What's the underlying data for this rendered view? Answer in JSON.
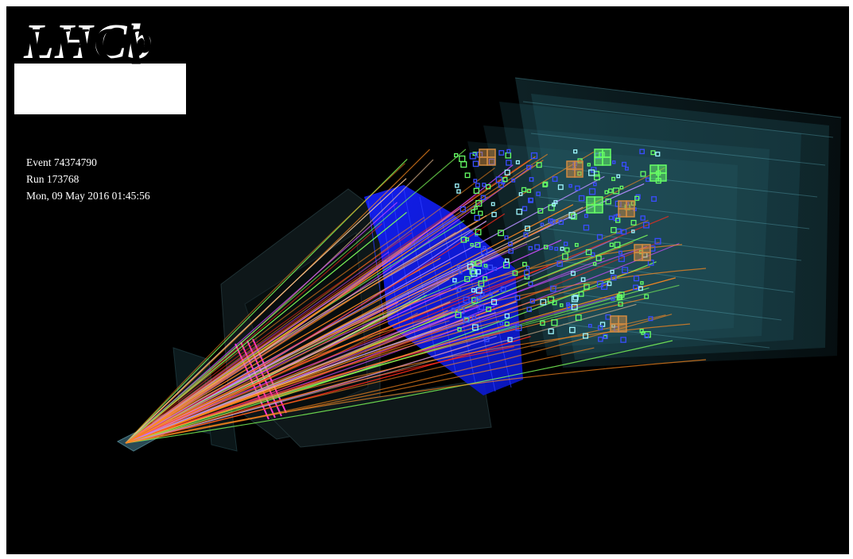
{
  "logo": {
    "text": "LHCb"
  },
  "event": {
    "event_label": "Event 74374790",
    "run_label": "Run 173768",
    "timestamp": "Mon, 09 May 2016 01:45:56"
  },
  "colors": {
    "background": "#000000",
    "rich_detector": "#1a2bff",
    "calorimeter": "#3c7d8a",
    "tracks_orange": "#ff8a1e",
    "tracks_red": "#ff2a1a",
    "tracks_magenta": "#d04cff",
    "tracks_green": "#7fff5a",
    "hits_blue": "#3a4dff",
    "hits_green": "#66ff66",
    "hits_tan": "#d08a40",
    "velo_magenta": "#ff33cc"
  }
}
